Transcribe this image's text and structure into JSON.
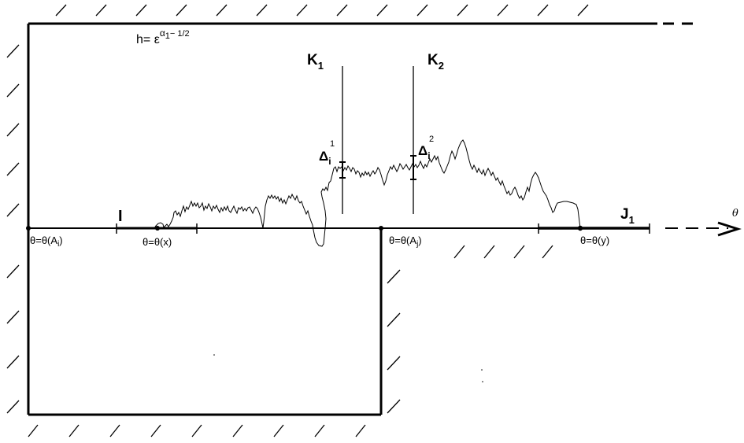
{
  "labels": {
    "h_formula": {
      "base": "h= ε",
      "exp": "α",
      "exp_sub": "1",
      "exp_tail": "− 1/2"
    },
    "K1": {
      "main": "K",
      "sub": "1"
    },
    "K2": {
      "main": "K",
      "sub": "2"
    },
    "delta1": {
      "main": "Δ",
      "sub": "i",
      "sup": "1"
    },
    "delta2": {
      "main": "Δ",
      "sub": "i",
      "sup": "2"
    },
    "I": "I",
    "J1": {
      "main": "J",
      "sub": "1"
    },
    "theta_axis": "θ",
    "theta_Ai": {
      "pre": "θ=θ(A",
      "sub": "i",
      "post": ")"
    },
    "theta_x": "θ=θ(x)",
    "theta_Aj": {
      "pre": "θ=θ(A",
      "sub": "j",
      "post": ")"
    },
    "theta_y": "θ=θ(y)"
  },
  "colors": {
    "ink": "#000000",
    "background": "#ffffff"
  }
}
